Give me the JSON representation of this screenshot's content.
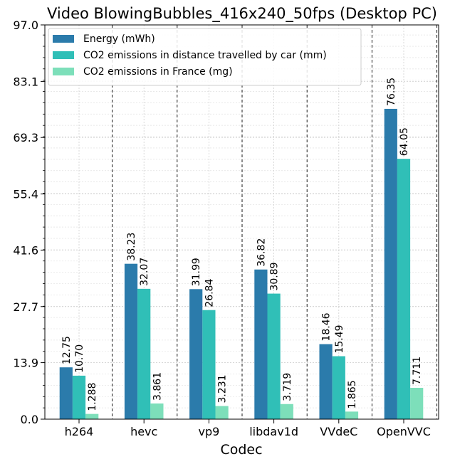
{
  "chart_data": {
    "type": "bar",
    "title": "Video BlowingBubbles_416x240_50fps (Desktop PC)",
    "xlabel": "Codec",
    "ylabel": "",
    "categories": [
      "h264",
      "hevc",
      "vp9",
      "libdav1d",
      "VVdeC",
      "OpenVVC"
    ],
    "series": [
      {
        "name": "Energy (mWh)",
        "values": [
          12.75,
          38.23,
          31.99,
          36.82,
          18.46,
          76.35
        ],
        "labels": [
          "12.75",
          "38.23",
          "31.99",
          "36.82",
          "18.46",
          "76.35"
        ],
        "color": "#2b7bab"
      },
      {
        "name": "CO2 emissions in distance travelled by car (mm)",
        "values": [
          10.7,
          32.07,
          26.84,
          30.89,
          15.49,
          64.05
        ],
        "labels": [
          "10.70",
          "32.07",
          "26.84",
          "30.89",
          "15.49",
          "64.05"
        ],
        "color": "#30bfb7"
      },
      {
        "name": "CO2 emissions in France (mg)",
        "values": [
          1.288,
          3.861,
          3.231,
          3.719,
          1.865,
          7.711
        ],
        "labels": [
          "1.288",
          "3.861",
          "3.231",
          "3.719",
          "1.865",
          "7.711"
        ],
        "color": "#7ddfba"
      }
    ],
    "yticks": [
      0.0,
      13.9,
      27.7,
      41.6,
      55.4,
      69.3,
      83.1,
      97.0
    ],
    "ytick_labels": [
      "0.0",
      "13.9",
      "27.7",
      "41.6",
      "55.4",
      "69.3",
      "83.1",
      "97.0"
    ],
    "ylim": [
      0,
      97.0
    ],
    "grid": true,
    "legend_position": "top-left"
  }
}
